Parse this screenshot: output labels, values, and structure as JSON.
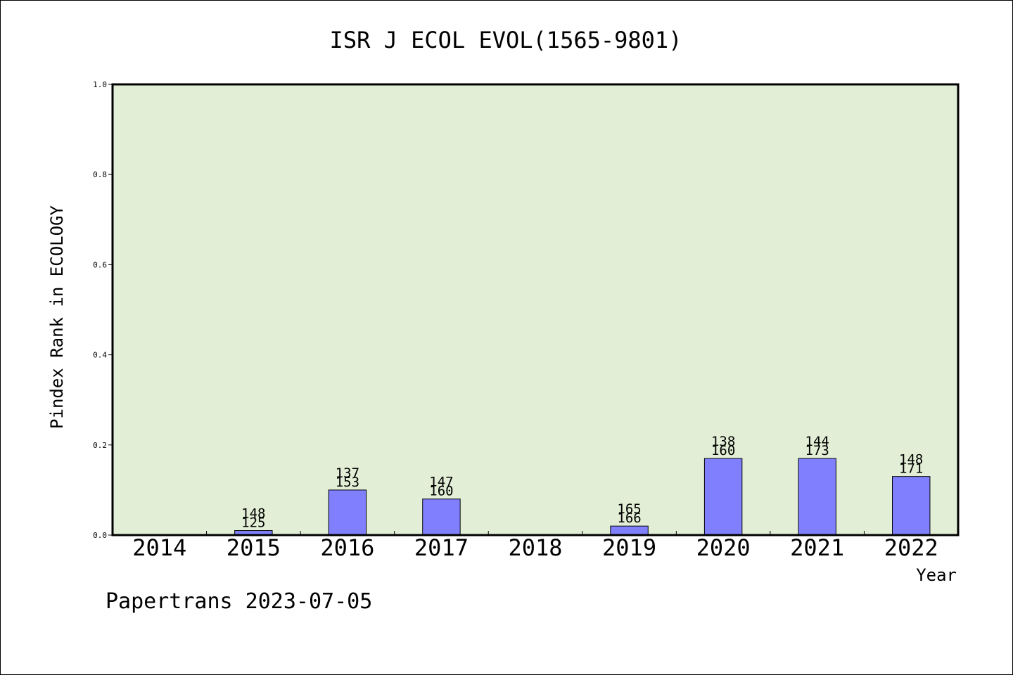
{
  "chart_data": {
    "type": "bar",
    "title": "ISR J ECOL EVOL(1565-9801)",
    "xlabel": "Year",
    "ylabel": "Pindex Rank in ECOLOGY",
    "ylim": [
      0,
      1.0
    ],
    "yticks": [
      "0.0",
      "0.2",
      "0.4",
      "0.6",
      "0.8",
      "1.0"
    ],
    "categories": [
      "2014",
      "2015",
      "2016",
      "2017",
      "2018",
      "2019",
      "2020",
      "2021",
      "2022"
    ],
    "values": [
      0,
      0.01,
      0.1,
      0.08,
      0,
      0.02,
      0.17,
      0.17,
      0.13
    ],
    "label_top": [
      "",
      "148",
      "137",
      "147",
      "",
      "165",
      "138",
      "144",
      "148"
    ],
    "label_bottom": [
      "",
      "125",
      "153",
      "160",
      "",
      "166",
      "160",
      "173",
      "171"
    ],
    "grid": false,
    "plot_background": "#e2efd6",
    "bar_color": "#8080ff"
  },
  "footer": "Papertrans 2023-07-05"
}
